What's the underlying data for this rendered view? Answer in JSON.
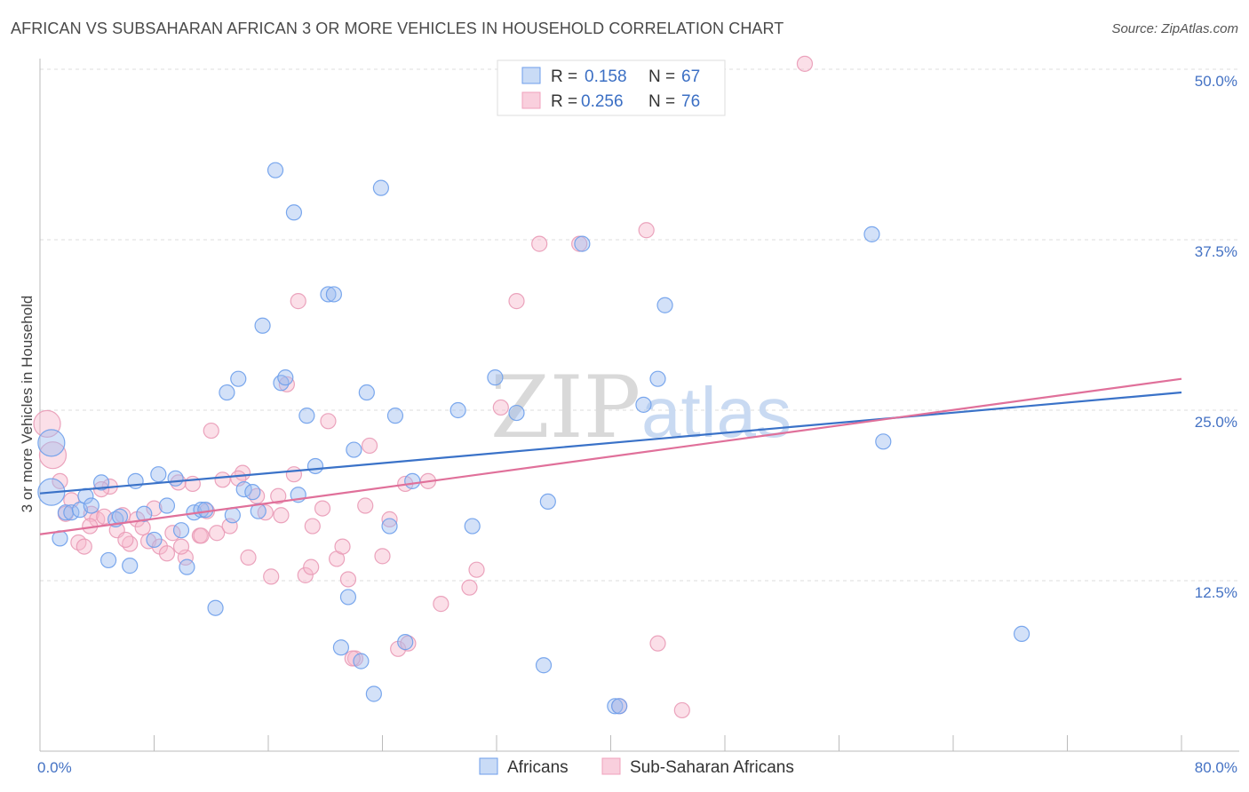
{
  "title": "AFRICAN VS SUBSAHARAN AFRICAN 3 OR MORE VEHICLES IN HOUSEHOLD CORRELATION CHART",
  "source": "Source: ZipAtlas.com",
  "watermark": {
    "zip": "ZIP",
    "atlas": "atlas"
  },
  "colors": {
    "blue": "#6d9eeb",
    "pink": "#f0a0bc",
    "blue_line": "#3a72c8",
    "pink_line": "#e0709a",
    "tick": "#4472c4"
  },
  "legend": {
    "rows": [
      {
        "r_label": "R =",
        "r_value": "0.158",
        "n_label": "N =",
        "n_value": "67",
        "series": "Africans"
      },
      {
        "r_label": "R =",
        "r_value": "0.256",
        "n_label": "N =",
        "n_value": "76",
        "series": "Sub-Saharan Africans"
      }
    ]
  },
  "chart_data": {
    "type": "scatter",
    "title": "AFRICAN VS SUBSAHARAN AFRICAN 3 OR MORE VEHICLES IN HOUSEHOLD CORRELATION CHART",
    "xlabel": "",
    "ylabel": "3 or more Vehicles in Household",
    "xlim": [
      0,
      80
    ],
    "ylim": [
      0,
      50
    ],
    "x_tick_labels": [
      "0.0%",
      "80.0%"
    ],
    "y_ticks": [
      12.5,
      25.0,
      37.5,
      50.0
    ],
    "y_tick_labels": [
      "12.5%",
      "25.0%",
      "37.5%",
      "50.0%"
    ],
    "grid": "horizontal dashed",
    "legend_position": "top-center",
    "series": [
      {
        "name": "Africans",
        "color": "#6d9eeb",
        "trend": {
          "x": [
            0,
            80
          ],
          "y": [
            18.9,
            26.3
          ]
        },
        "points": [
          [
            0.8,
            22.6
          ],
          [
            0.8,
            19.0
          ],
          [
            1.4,
            15.6
          ],
          [
            1.8,
            17.5
          ],
          [
            2.2,
            17.5
          ],
          [
            2.8,
            17.7
          ],
          [
            3.2,
            18.7
          ],
          [
            3.6,
            18.0
          ],
          [
            4.3,
            19.7
          ],
          [
            4.8,
            14.0
          ],
          [
            5.3,
            17.0
          ],
          [
            5.6,
            17.2
          ],
          [
            6.3,
            13.6
          ],
          [
            6.7,
            19.8
          ],
          [
            7.3,
            17.4
          ],
          [
            8.0,
            15.5
          ],
          [
            8.3,
            20.3
          ],
          [
            8.9,
            18.0
          ],
          [
            9.5,
            20.0
          ],
          [
            9.9,
            16.2
          ],
          [
            10.3,
            13.5
          ],
          [
            10.8,
            17.5
          ],
          [
            11.3,
            17.7
          ],
          [
            11.6,
            17.7
          ],
          [
            12.3,
            10.5
          ],
          [
            13.1,
            26.3
          ],
          [
            13.5,
            17.3
          ],
          [
            13.9,
            27.3
          ],
          [
            14.3,
            19.2
          ],
          [
            14.9,
            19.0
          ],
          [
            15.3,
            17.6
          ],
          [
            15.6,
            31.2
          ],
          [
            16.5,
            42.6
          ],
          [
            16.9,
            27.0
          ],
          [
            17.2,
            27.4
          ],
          [
            17.8,
            39.5
          ],
          [
            18.1,
            18.8
          ],
          [
            18.7,
            24.6
          ],
          [
            19.3,
            20.9
          ],
          [
            20.2,
            33.5
          ],
          [
            20.6,
            33.5
          ],
          [
            21.1,
            7.6
          ],
          [
            21.6,
            11.3
          ],
          [
            22.0,
            22.1
          ],
          [
            22.5,
            6.6
          ],
          [
            22.9,
            26.3
          ],
          [
            23.4,
            4.2
          ],
          [
            23.9,
            41.3
          ],
          [
            24.5,
            16.5
          ],
          [
            24.9,
            24.6
          ],
          [
            25.6,
            8.0
          ],
          [
            26.1,
            19.8
          ],
          [
            29.3,
            25.0
          ],
          [
            30.3,
            16.5
          ],
          [
            31.9,
            27.4
          ],
          [
            33.4,
            24.8
          ],
          [
            35.3,
            6.3
          ],
          [
            35.6,
            18.3
          ],
          [
            38.0,
            37.2
          ],
          [
            40.3,
            3.3
          ],
          [
            42.3,
            25.4
          ],
          [
            43.3,
            27.3
          ],
          [
            43.8,
            32.7
          ],
          [
            58.3,
            37.9
          ],
          [
            59.1,
            22.7
          ],
          [
            68.8,
            8.6
          ],
          [
            40.6,
            3.3
          ]
        ]
      },
      {
        "name": "Sub-Saharan Africans",
        "color": "#f0a0bc",
        "trend": {
          "x": [
            0,
            80
          ],
          "y": [
            15.9,
            27.3
          ]
        },
        "points": [
          [
            0.5,
            24.0
          ],
          [
            0.9,
            21.7
          ],
          [
            1.4,
            19.8
          ],
          [
            1.8,
            17.4
          ],
          [
            2.2,
            18.4
          ],
          [
            2.7,
            15.3
          ],
          [
            3.1,
            15.0
          ],
          [
            3.6,
            17.4
          ],
          [
            4.0,
            17.0
          ],
          [
            4.5,
            17.2
          ],
          [
            4.9,
            19.4
          ],
          [
            5.4,
            16.2
          ],
          [
            5.8,
            17.3
          ],
          [
            6.3,
            15.2
          ],
          [
            6.8,
            17.0
          ],
          [
            7.2,
            16.4
          ],
          [
            7.6,
            15.4
          ],
          [
            8.0,
            17.8
          ],
          [
            8.4,
            15.0
          ],
          [
            8.9,
            14.5
          ],
          [
            9.3,
            16.0
          ],
          [
            9.7,
            19.7
          ],
          [
            10.2,
            14.2
          ],
          [
            10.7,
            19.6
          ],
          [
            11.2,
            15.8
          ],
          [
            11.7,
            17.6
          ],
          [
            12.0,
            23.5
          ],
          [
            12.4,
            16.0
          ],
          [
            12.8,
            19.9
          ],
          [
            13.3,
            16.5
          ],
          [
            14.2,
            20.4
          ],
          [
            14.6,
            14.2
          ],
          [
            15.2,
            18.7
          ],
          [
            15.8,
            17.5
          ],
          [
            16.2,
            12.8
          ],
          [
            16.7,
            18.7
          ],
          [
            17.3,
            26.9
          ],
          [
            17.8,
            20.3
          ],
          [
            18.1,
            33.0
          ],
          [
            18.6,
            12.9
          ],
          [
            19.0,
            13.5
          ],
          [
            19.8,
            17.8
          ],
          [
            20.2,
            24.2
          ],
          [
            20.8,
            14.1
          ],
          [
            21.2,
            15.0
          ],
          [
            21.6,
            12.6
          ],
          [
            22.1,
            6.8
          ],
          [
            22.8,
            18.0
          ],
          [
            23.1,
            22.4
          ],
          [
            24.0,
            14.3
          ],
          [
            24.5,
            17.0
          ],
          [
            25.1,
            7.5
          ],
          [
            25.6,
            19.6
          ],
          [
            28.1,
            10.8
          ],
          [
            30.1,
            12.0
          ],
          [
            30.6,
            13.3
          ],
          [
            32.3,
            25.2
          ],
          [
            33.4,
            33.0
          ],
          [
            35.0,
            37.2
          ],
          [
            37.8,
            37.2
          ],
          [
            40.6,
            3.3
          ],
          [
            42.5,
            38.2
          ],
          [
            43.3,
            7.9
          ],
          [
            45.0,
            3.0
          ],
          [
            53.6,
            50.4
          ],
          [
            21.9,
            6.8
          ],
          [
            13.9,
            20.0
          ],
          [
            9.9,
            15.0
          ],
          [
            27.2,
            19.8
          ],
          [
            11.3,
            15.8
          ],
          [
            19.1,
            16.5
          ],
          [
            6.0,
            15.5
          ],
          [
            4.3,
            19.2
          ],
          [
            3.5,
            16.5
          ],
          [
            16.9,
            17.3
          ],
          [
            25.8,
            7.9
          ]
        ]
      }
    ]
  },
  "bottom_legend": [
    {
      "label": "Africans"
    },
    {
      "label": "Sub-Saharan Africans"
    }
  ]
}
